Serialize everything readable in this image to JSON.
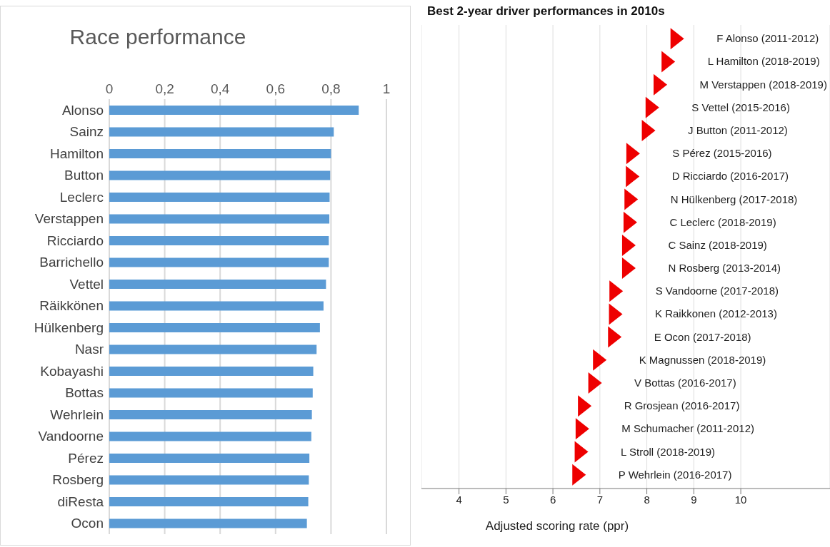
{
  "chart_data": [
    {
      "type": "bar",
      "orientation": "horizontal",
      "title": "Race performance",
      "categories": [
        "Alonso",
        "Sainz",
        "Hamilton",
        "Button",
        "Leclerc",
        "Verstappen",
        "Ricciardo",
        "Barrichello",
        "Vettel",
        "Räikkönen",
        "Hülkenberg",
        "Nasr",
        "Kobayashi",
        "Bottas",
        "Wehrlein",
        "Vandoorne",
        "Pérez",
        "Rosberg",
        "diResta",
        "Ocon"
      ],
      "values": [
        0.9,
        0.81,
        0.8,
        0.797,
        0.795,
        0.794,
        0.792,
        0.792,
        0.782,
        0.773,
        0.76,
        0.748,
        0.736,
        0.734,
        0.731,
        0.729,
        0.722,
        0.72,
        0.718,
        0.713
      ],
      "color": "#5b9bd5",
      "xlim": [
        0,
        1
      ],
      "xticks": [
        0,
        {
          "value": 0.2,
          "label": "0,2"
        },
        {
          "value": 0.4,
          "label": "0,4"
        },
        {
          "value": 0.6,
          "label": "0,6"
        },
        {
          "value": 0.8,
          "label": "0,8"
        },
        1
      ],
      "grid": "x"
    },
    {
      "type": "scatter",
      "orientation": "horizontal",
      "title": "Best 2-year driver performances in 2010s",
      "xlabel": "Adjusted scoring rate (ppr)",
      "categories": [
        "F Alonso (2011-2012)",
        "L Hamilton (2018-2019)",
        "M Verstappen (2018-2019)",
        "S Vettel (2015-2016)",
        "J Button (2011-2012)",
        "S Pérez (2015-2016)",
        "D Ricciardo (2016-2017)",
        "N Hülkenberg (2017-2018)",
        "C Leclerc (2018-2019)",
        "C Sainz (2018-2019)",
        "N Rosberg (2013-2014)",
        "S Vandoorne (2017-2018)",
        "K Raikkonen (2012-2013)",
        "E Ocon (2017-2018)",
        "K Magnussen (2018-2019)",
        "V Bottas (2016-2017)",
        "R Grosjean (2016-2017)",
        "M Schumacher (2011-2012)",
        "L Stroll (2018-2019)",
        "P Wehrlein (2016-2017)"
      ],
      "values": [
        8.64,
        8.45,
        8.28,
        8.11,
        8.03,
        7.7,
        7.69,
        7.66,
        7.64,
        7.61,
        7.61,
        7.34,
        7.33,
        7.31,
        6.99,
        6.89,
        6.67,
        6.62,
        6.6,
        6.55
      ],
      "color": "#ee0000",
      "marker": "triangle",
      "xlim": [
        3.2,
        11.9
      ],
      "xticks": [
        4,
        5,
        6,
        7,
        8,
        9,
        10
      ],
      "grid": "x"
    }
  ]
}
